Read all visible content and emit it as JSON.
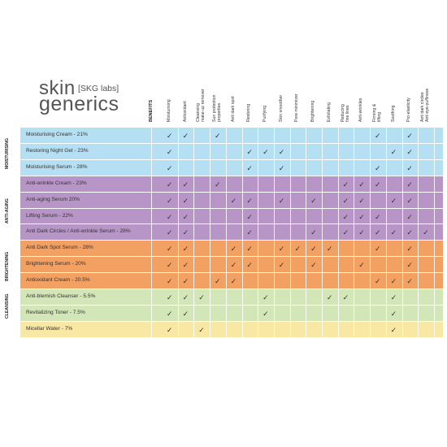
{
  "logo": {
    "skin": "skin",
    "lab": "[SKG labs]",
    "generics": "generics"
  },
  "benefits_title": "BENEFITS",
  "columns": [
    "Moisturising",
    "Antioxidant",
    "Cleansing\nmake-up remover",
    "Sun protection\nproperties",
    "Anti dark spot",
    "Restoring",
    "Purifying",
    "Skin smoother",
    "Pore minimizer",
    "Brightening",
    "Exfoliating",
    "Reducing\nfine lines",
    "Anti-wrinkles",
    "Firming &\nlifting",
    "Soothing",
    "Pro-elasticity",
    "Anti dark circles\nAnti eye-puffiness"
  ],
  "check_glyph": "✓",
  "groups": [
    {
      "label": "MOISTURISING",
      "color": "#b5dff2",
      "rows": [
        {
          "label": "Moisturising Cream - 21%",
          "checks": [
            1,
            1,
            0,
            1,
            0,
            0,
            0,
            0,
            0,
            0,
            0,
            0,
            0,
            1,
            0,
            1,
            0
          ]
        },
        {
          "label": "Restoring Night Gel - 23%",
          "checks": [
            1,
            0,
            0,
            0,
            0,
            1,
            1,
            1,
            0,
            0,
            0,
            0,
            0,
            0,
            1,
            1,
            0
          ]
        },
        {
          "label": "Moisturising Serum - 28%",
          "checks": [
            1,
            0,
            0,
            0,
            0,
            1,
            0,
            1,
            0,
            0,
            0,
            0,
            0,
            1,
            0,
            1,
            0
          ]
        }
      ]
    },
    {
      "label": "ANTI-AGING",
      "color": "#b795c6",
      "rows": [
        {
          "label": "Anti-wrinkle Cream - 23%",
          "checks": [
            1,
            1,
            0,
            1,
            0,
            0,
            0,
            0,
            0,
            0,
            0,
            1,
            1,
            1,
            0,
            1,
            0
          ]
        },
        {
          "label": "Anti-aging Serum 20%",
          "checks": [
            1,
            1,
            0,
            0,
            1,
            1,
            0,
            1,
            0,
            1,
            0,
            1,
            1,
            0,
            1,
            1,
            0
          ]
        },
        {
          "label": "Lifting Serum - 22%",
          "checks": [
            1,
            1,
            0,
            0,
            0,
            1,
            0,
            0,
            0,
            0,
            0,
            1,
            1,
            1,
            0,
            1,
            0
          ]
        },
        {
          "label": "Anti Dark Circles / Anti-wrinkle Serum - 28%",
          "checks": [
            1,
            1,
            0,
            0,
            0,
            1,
            0,
            0,
            0,
            1,
            0,
            1,
            1,
            1,
            1,
            1,
            1
          ]
        }
      ]
    },
    {
      "label": "BRIGHTENING",
      "color": "#f3a063",
      "rows": [
        {
          "label": "Anti Dark Spot Serum - 28%",
          "checks": [
            1,
            1,
            0,
            0,
            1,
            1,
            0,
            1,
            1,
            1,
            1,
            0,
            0,
            1,
            0,
            1,
            0
          ]
        },
        {
          "label": "Brightening Serum - 20%",
          "checks": [
            1,
            1,
            0,
            0,
            1,
            1,
            0,
            1,
            0,
            1,
            0,
            0,
            1,
            0,
            0,
            1,
            0
          ]
        },
        {
          "label": "Antioxidant Cream - 20.5%",
          "checks": [
            1,
            1,
            0,
            1,
            1,
            0,
            0,
            0,
            0,
            0,
            0,
            0,
            0,
            1,
            1,
            1,
            0
          ]
        }
      ]
    },
    {
      "label": "CLEANSING",
      "color": "#d3e6b8",
      "rows": [
        {
          "label": "Anti-blemish Cleanser - 5.5%",
          "checks": [
            1,
            1,
            1,
            0,
            0,
            0,
            1,
            0,
            0,
            0,
            1,
            1,
            0,
            0,
            1,
            0,
            0
          ]
        },
        {
          "label": "Revitalizing Toner - 7.5%",
          "checks": [
            1,
            1,
            0,
            0,
            0,
            0,
            1,
            0,
            0,
            0,
            0,
            0,
            0,
            0,
            1,
            0,
            0
          ]
        }
      ]
    },
    {
      "label": "",
      "color": "#f8e8a4",
      "rows": [
        {
          "label": "Micellar Water - 7%",
          "checks": [
            1,
            0,
            1,
            0,
            0,
            0,
            0,
            0,
            0,
            0,
            0,
            0,
            0,
            0,
            1,
            0,
            0
          ]
        }
      ]
    }
  ]
}
